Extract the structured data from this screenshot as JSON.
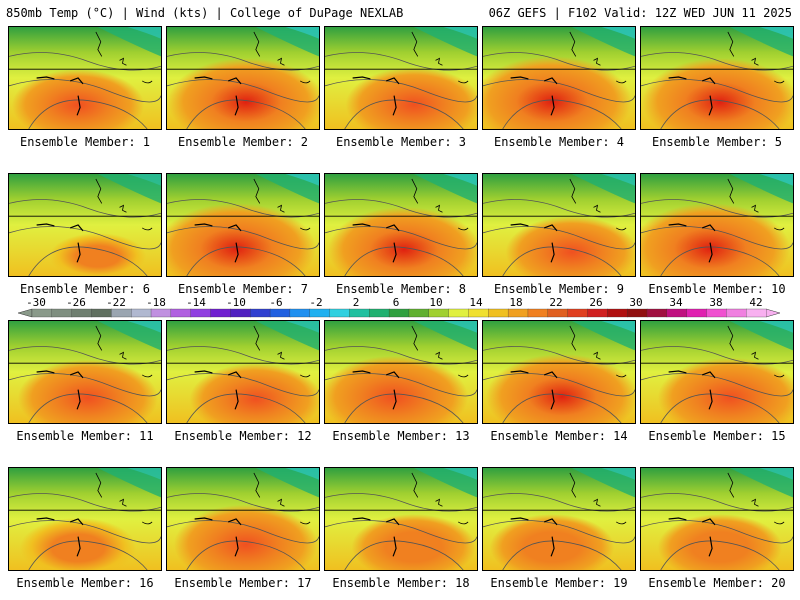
{
  "header": {
    "left": "850mb Temp (°C) | Wind (kts) | College of DuPage NEXLAB",
    "right": "06Z GEFS | F102 Valid: 12Z WED JUN 11 2025"
  },
  "members": [
    {
      "label": "Ensemble Member: 1",
      "hot": 0.55
    },
    {
      "label": "Ensemble Member: 2",
      "hot": 0.85
    },
    {
      "label": "Ensemble Member: 3",
      "hot": 0.6
    },
    {
      "label": "Ensemble Member: 4",
      "hot": 0.9
    },
    {
      "label": "Ensemble Member: 5",
      "hot": 0.85
    },
    {
      "label": "Ensemble Member: 6",
      "hot": 0.1
    },
    {
      "label": "Ensemble Member: 7",
      "hot": 0.9
    },
    {
      "label": "Ensemble Member: 8",
      "hot": 0.8
    },
    {
      "label": "Ensemble Member: 9",
      "hot": 0.55
    },
    {
      "label": "Ensemble Member: 10",
      "hot": 0.9
    },
    {
      "label": "Ensemble Member: 11",
      "hot": 0.65
    },
    {
      "label": "Ensemble Member: 12",
      "hot": 0.55
    },
    {
      "label": "Ensemble Member: 13",
      "hot": 0.75
    },
    {
      "label": "Ensemble Member: 14",
      "hot": 0.8
    },
    {
      "label": "Ensemble Member: 15",
      "hot": 0.7
    },
    {
      "label": "Ensemble Member: 16",
      "hot": 0.35
    },
    {
      "label": "Ensemble Member: 17",
      "hot": 0.7
    },
    {
      "label": "Ensemble Member: 18",
      "hot": 0.45
    },
    {
      "label": "Ensemble Member: 19",
      "hot": 0.45
    },
    {
      "label": "Ensemble Member: 20",
      "hot": 0.45
    }
  ],
  "colorbar": {
    "labels": [
      "-30",
      "-26",
      "-22",
      "-18",
      "-14",
      "-10",
      "-6",
      "-2",
      "2",
      "6",
      "10",
      "14",
      "18",
      "22",
      "26",
      "30",
      "34",
      "38",
      "42"
    ],
    "colors": [
      "#8a9a8a",
      "#7f8f80",
      "#6f7f70",
      "#607060",
      "#9aa5b0",
      "#b0b8d0",
      "#c090e0",
      "#b060e0",
      "#9040e0",
      "#7020d0",
      "#5020c0",
      "#3040d0",
      "#2060e0",
      "#2090f0",
      "#20b0f0",
      "#30d0e0",
      "#20c0a0",
      "#20b070",
      "#30a040",
      "#60b030",
      "#a0d030",
      "#e0f040",
      "#f0e030",
      "#f0c020",
      "#f0a020",
      "#f08020",
      "#e06020",
      "#e04020",
      "#d02020",
      "#b01010",
      "#901010",
      "#a01040",
      "#c01080",
      "#e020b0",
      "#f050d0",
      "#f080e0",
      "#f8b0f0"
    ]
  }
}
